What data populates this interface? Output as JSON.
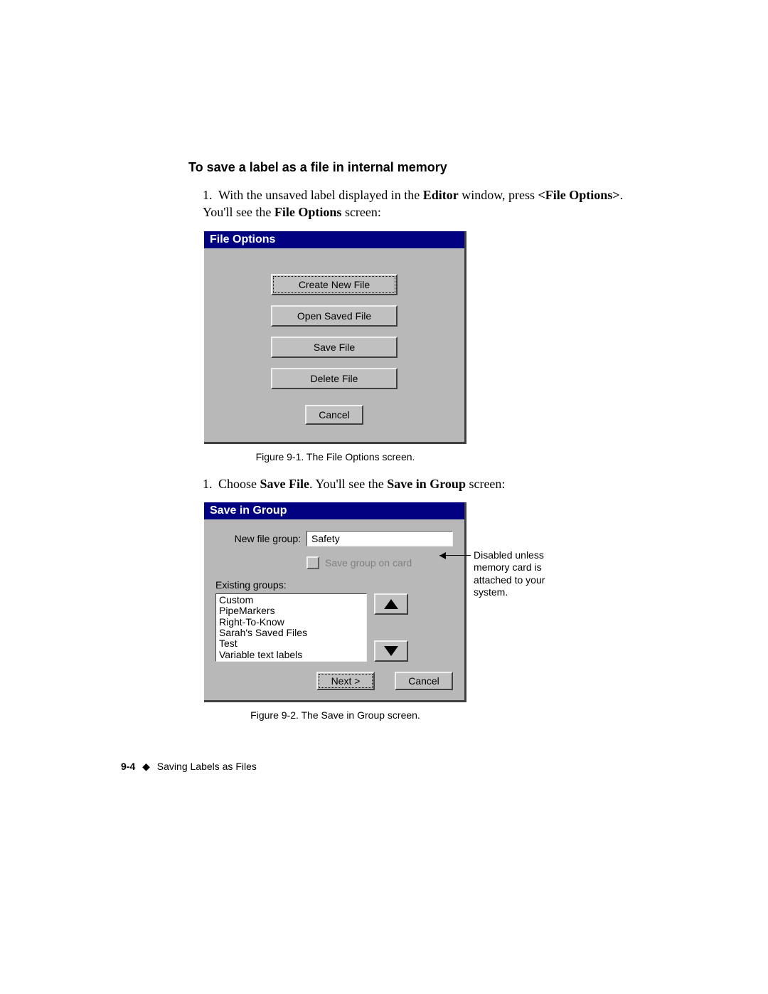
{
  "heading": "To save a label as a file in internal memory",
  "step1": {
    "num": "1.",
    "t1": "With the unsaved label displayed in the ",
    "b1": "Editor",
    "t2": " window, press ",
    "b2": "<File Options>",
    "t3": ". You'll see the ",
    "b3": "File Options",
    "t4": " screen:"
  },
  "dialog1": {
    "title": "File Options",
    "buttons": {
      "create": "Create New File",
      "open": "Open Saved File",
      "save": "Save File",
      "delete": "Delete File",
      "cancel": "Cancel"
    }
  },
  "caption1": "Figure 9-1. The File Options screen.",
  "step2": {
    "num": "1.",
    "t1": "Choose ",
    "b1": "Save File",
    "t2": ". You'll see the ",
    "b2": "Save in Group",
    "t3": " screen:"
  },
  "dialog2": {
    "title": "Save in Group",
    "newFileGroupLabel": "New file group:",
    "newFileGroupValue": "Safety",
    "saveOnCard": "Save group on card",
    "existingLabel": "Existing groups:",
    "groups": [
      "Custom",
      "PipeMarkers",
      "Right-To-Know",
      "Sarah's Saved Files",
      "Test",
      "Variable text labels"
    ],
    "next": "Next >",
    "cancel": "Cancel"
  },
  "callout": "Disabled unless memory card is attached to your system.",
  "caption2": "Figure 9-2. The Save in Group screen.",
  "footer": {
    "page": "9-4",
    "title": "Saving Labels as Files"
  },
  "colors": {
    "titlebar": "#000080",
    "dialogBg": "#b8b8b8"
  }
}
